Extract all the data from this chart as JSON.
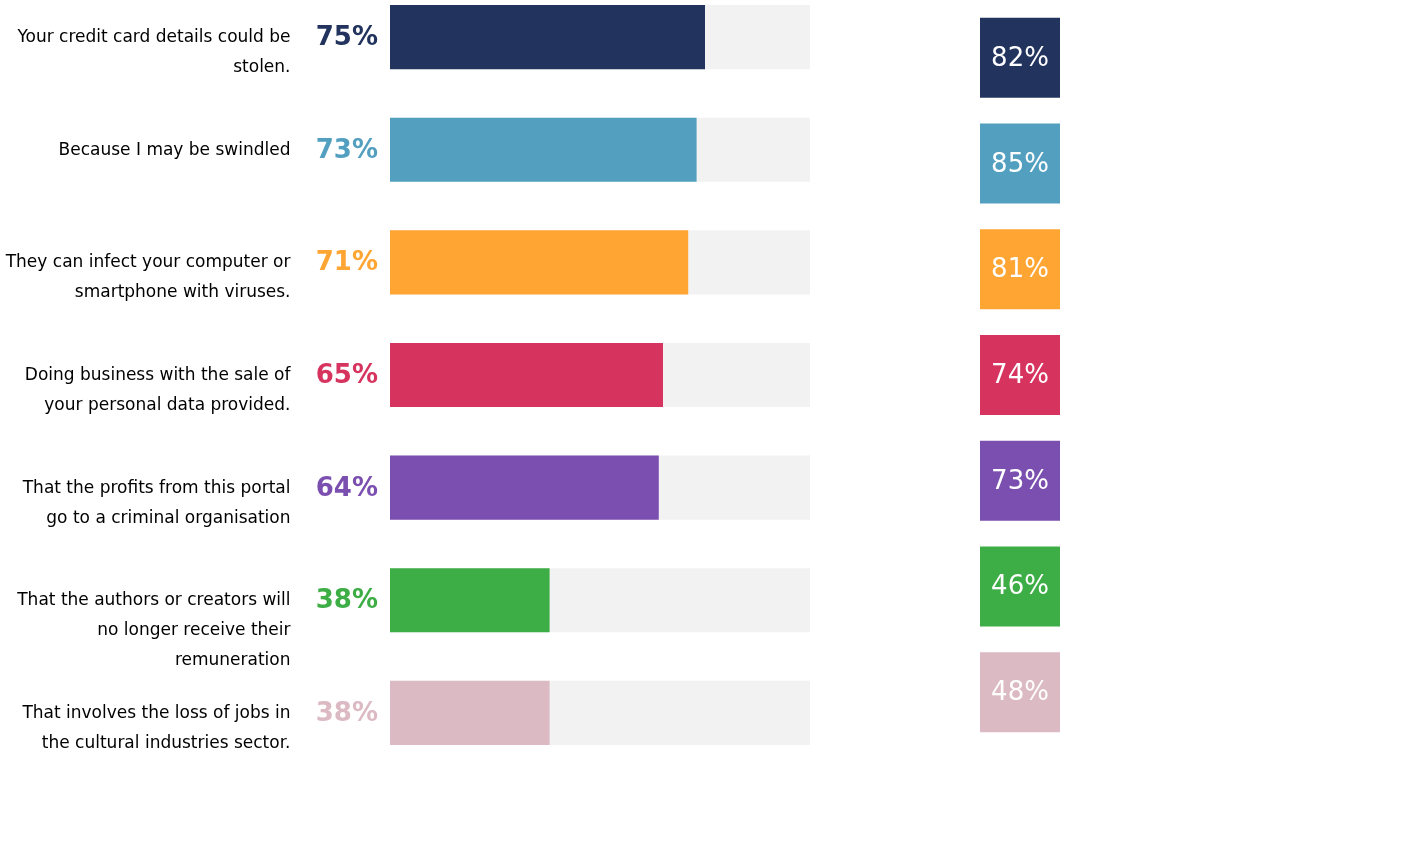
{
  "chart_data": [
    {
      "type": "bar",
      "orientation": "horizontal",
      "categories": [
        "Your credit card details could be stolen.",
        "Because I may be swindled",
        "They can infect your computer or smartphone with viruses.",
        "Doing business with the sale of your personal data provided.",
        "That the profits from this portal go to a criminal organisation",
        "That the authors or creators will no longer receive their remuneration",
        "That involves the loss of jobs in the cultural industries sector."
      ],
      "values": [
        75,
        73,
        71,
        65,
        64,
        38,
        38
      ],
      "colors": [
        "#22345e",
        "#529fc0",
        "#ffa533",
        "#d6335e",
        "#7b4fb0",
        "#3dad45",
        "#dcbac4"
      ],
      "value_labels": [
        "75%",
        "73%",
        "71%",
        "65%",
        "64%",
        "38%",
        "38%"
      ],
      "xlim": [
        0,
        100
      ],
      "tick_labels": "y",
      "grid": false
    },
    {
      "type": "other",
      "categories": [
        null,
        null,
        null,
        null,
        null,
        null,
        null
      ],
      "values": [
        82,
        85,
        81,
        74,
        73,
        46,
        48
      ],
      "colors": [
        "#22345e",
        "#529fc0",
        "#ffa533",
        "#d6335e",
        "#7b4fb0",
        "#3dad45",
        "#dcbac4"
      ],
      "value_labels": [
        "82%",
        "85%",
        "81%",
        "74%",
        "73%",
        "46%",
        "48%"
      ]
    }
  ]
}
